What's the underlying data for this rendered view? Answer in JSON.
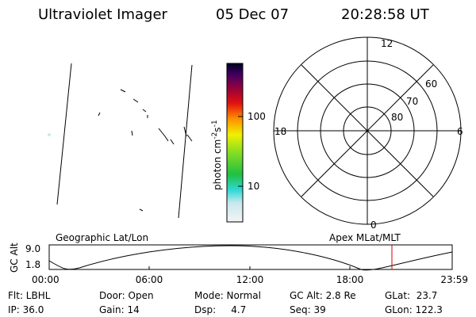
{
  "header": {
    "instrument": "Ultraviolet Imager",
    "date": "05 Dec 07",
    "time": "20:28:58 UT"
  },
  "colorbar": {
    "label": "photon cm",
    "exp1": "-2",
    "unit2": "s",
    "exp2": "-1",
    "ticks": [
      "100",
      "10"
    ]
  },
  "polar": {
    "hours": {
      "top": "12",
      "bottom": "0",
      "left": "18",
      "right": "6"
    },
    "latitudes": [
      "60",
      "70",
      "80"
    ]
  },
  "altitude_plot": {
    "y_label": "GC Alt",
    "left_title": "Geographic Lat/Lon",
    "right_title": "Apex MLat/MLT",
    "yticks": [
      "9.0",
      "1.8"
    ],
    "xticks": [
      "00:00",
      "06:00",
      "12:00",
      "18:00",
      "23:59"
    ]
  },
  "footer": {
    "rows": [
      [
        "Flt: LBHL",
        "Door: Open",
        "Mode: Normal",
        "GC Alt: 2.8 Re",
        "GLat:  23.7"
      ],
      [
        "IP: 36.0",
        "Gain: 14",
        "Dsp:     4.7",
        "Seq: 39",
        "GLon: 122.3"
      ]
    ]
  }
}
